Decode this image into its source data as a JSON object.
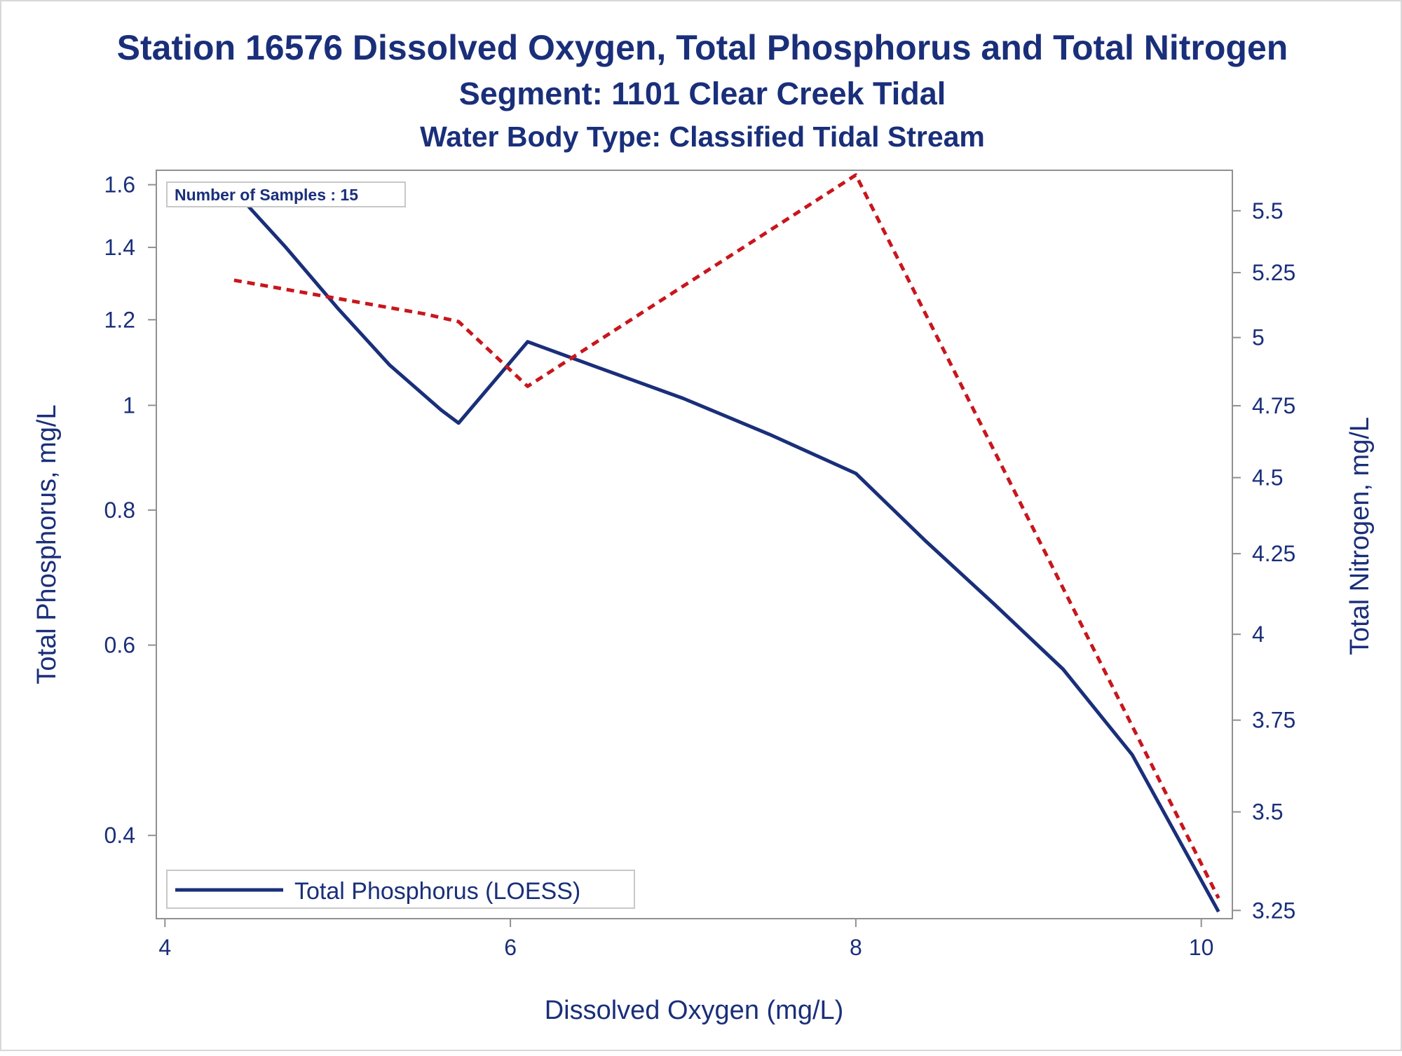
{
  "chart_data": {
    "type": "line",
    "title": "Station 16576  Dissolved Oxygen, Total Phosphorus and Total Nitrogen",
    "subtitle": "Segment: 1101  Clear Creek Tidal",
    "subtitle2": "Water Body Type: Classified Tidal Stream",
    "xlabel": "Dissolved Oxygen (mg/L)",
    "ylabel": "Total Phosphorus, mg/L",
    "y2label": "Total Nitrogen, mg/L",
    "annotation": "Number of Samples : 15",
    "xlim": [
      3.95,
      10.18
    ],
    "x_ticks": [
      4,
      6,
      8,
      10
    ],
    "x_tick_labels": [
      "4",
      "6",
      "8",
      "10"
    ],
    "ylim": [
      0.335,
      1.65
    ],
    "y_scale": "log",
    "y_ticks": [
      0.4,
      0.6,
      0.8,
      1.0,
      1.2,
      1.4,
      1.6
    ],
    "y_tick_labels": [
      "0.4",
      "0.6",
      "0.8",
      "1",
      "1.2",
      "1.4",
      "1.6"
    ],
    "y2lim": [
      3.23,
      5.67
    ],
    "y2_scale": "log",
    "y2_ticks": [
      3.25,
      3.5,
      3.75,
      4.0,
      4.25,
      4.5,
      4.75,
      5.0,
      5.25,
      5.5
    ],
    "y2_tick_labels": [
      "3.25",
      "3.5",
      "3.75",
      "4",
      "4.25",
      "4.5",
      "4.75",
      "5",
      "5.25",
      "5.5"
    ],
    "grid": false,
    "legend_position": "bottom-left",
    "series": [
      {
        "name": "Total Phosphorus (LOESS)",
        "axis": "left",
        "style": "solid",
        "color": "#1a2f7a",
        "x": [
          4.4,
          4.7,
          5.0,
          5.3,
          5.6,
          5.7,
          6.1,
          6.5,
          7.0,
          7.5,
          8.0,
          8.4,
          8.8,
          9.2,
          9.6,
          10.1
        ],
        "y": [
          1.58,
          1.4,
          1.23,
          1.09,
          0.99,
          0.963,
          1.145,
          1.085,
          1.015,
          0.94,
          0.865,
          0.75,
          0.655,
          0.57,
          0.475,
          0.34
        ]
      },
      {
        "name": "",
        "axis": "right",
        "style": "dashed",
        "color": "#c8161d",
        "x": [
          4.4,
          5.5,
          5.7,
          6.1,
          8.0,
          10.1
        ],
        "y": [
          5.22,
          5.09,
          5.06,
          4.82,
          5.65,
          3.28
        ]
      }
    ]
  },
  "colors": {
    "text": "#1a2f7a",
    "axis": "#909090",
    "phosphorus": "#1a2f7a",
    "nitrogen": "#c8161d"
  }
}
